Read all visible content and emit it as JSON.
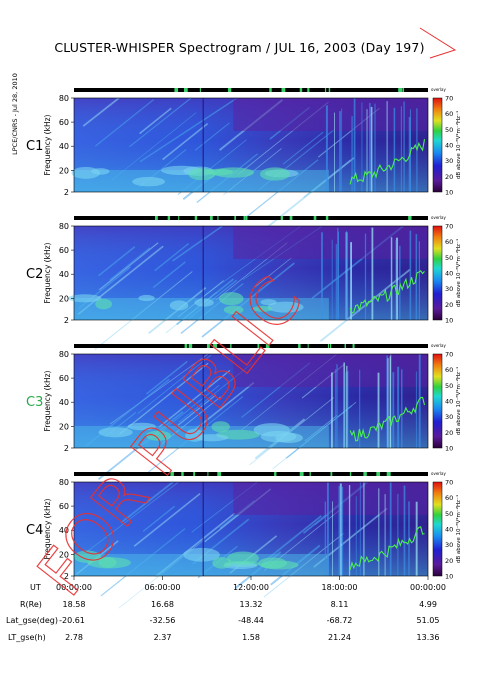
{
  "title": "CLUSTER-WHISPER Spectrogram / JUL 16, 2003 (Day 197)",
  "side_note": "LPCE/CNRS - Jul 28, 2010",
  "overlay_text": "FOR PUBLIC",
  "chart_data": {
    "type": "heatmap",
    "panels": [
      {
        "name": "C1",
        "color": "#000000"
      },
      {
        "name": "C2",
        "color": "#000000"
      },
      {
        "name": "C3",
        "color": "#2aa84a"
      },
      {
        "name": "C4",
        "color": "#000000"
      }
    ],
    "ylabel": "Frequency (kHz)",
    "yticks": [
      "80",
      "60",
      "40",
      "20",
      "2"
    ],
    "ylim": [
      2,
      80
    ],
    "colorbar_label": "dB above 10⁻⁸V²m⁻²Hz⁻¹",
    "colorbar_ticks": [
      "70",
      "60",
      "50",
      "40",
      "30",
      "20",
      "10"
    ],
    "colorbar_range": [
      10,
      70
    ],
    "status_label": "overlay",
    "x_row_labels": [
      "UT",
      "R(Re)",
      "Lat_gse(deg)",
      "LT_gse(h)"
    ],
    "x_columns": [
      {
        "UT": "00:00:00",
        "R": "18.58",
        "Lat": "-20.61",
        "LT": "2.78"
      },
      {
        "UT": "06:00:00",
        "R": "16.68",
        "Lat": "-32.56",
        "LT": "2.37"
      },
      {
        "UT": "12:00:00",
        "R": "13.32",
        "Lat": "-48.44",
        "LT": "1.58"
      },
      {
        "UT": "18:00:00",
        "R": "8.11",
        "Lat": "-68.72",
        "LT": "21.24"
      },
      {
        "UT": "00:00:00",
        "R": "4.99",
        "Lat": "51.05",
        "LT": "13.36"
      }
    ]
  }
}
